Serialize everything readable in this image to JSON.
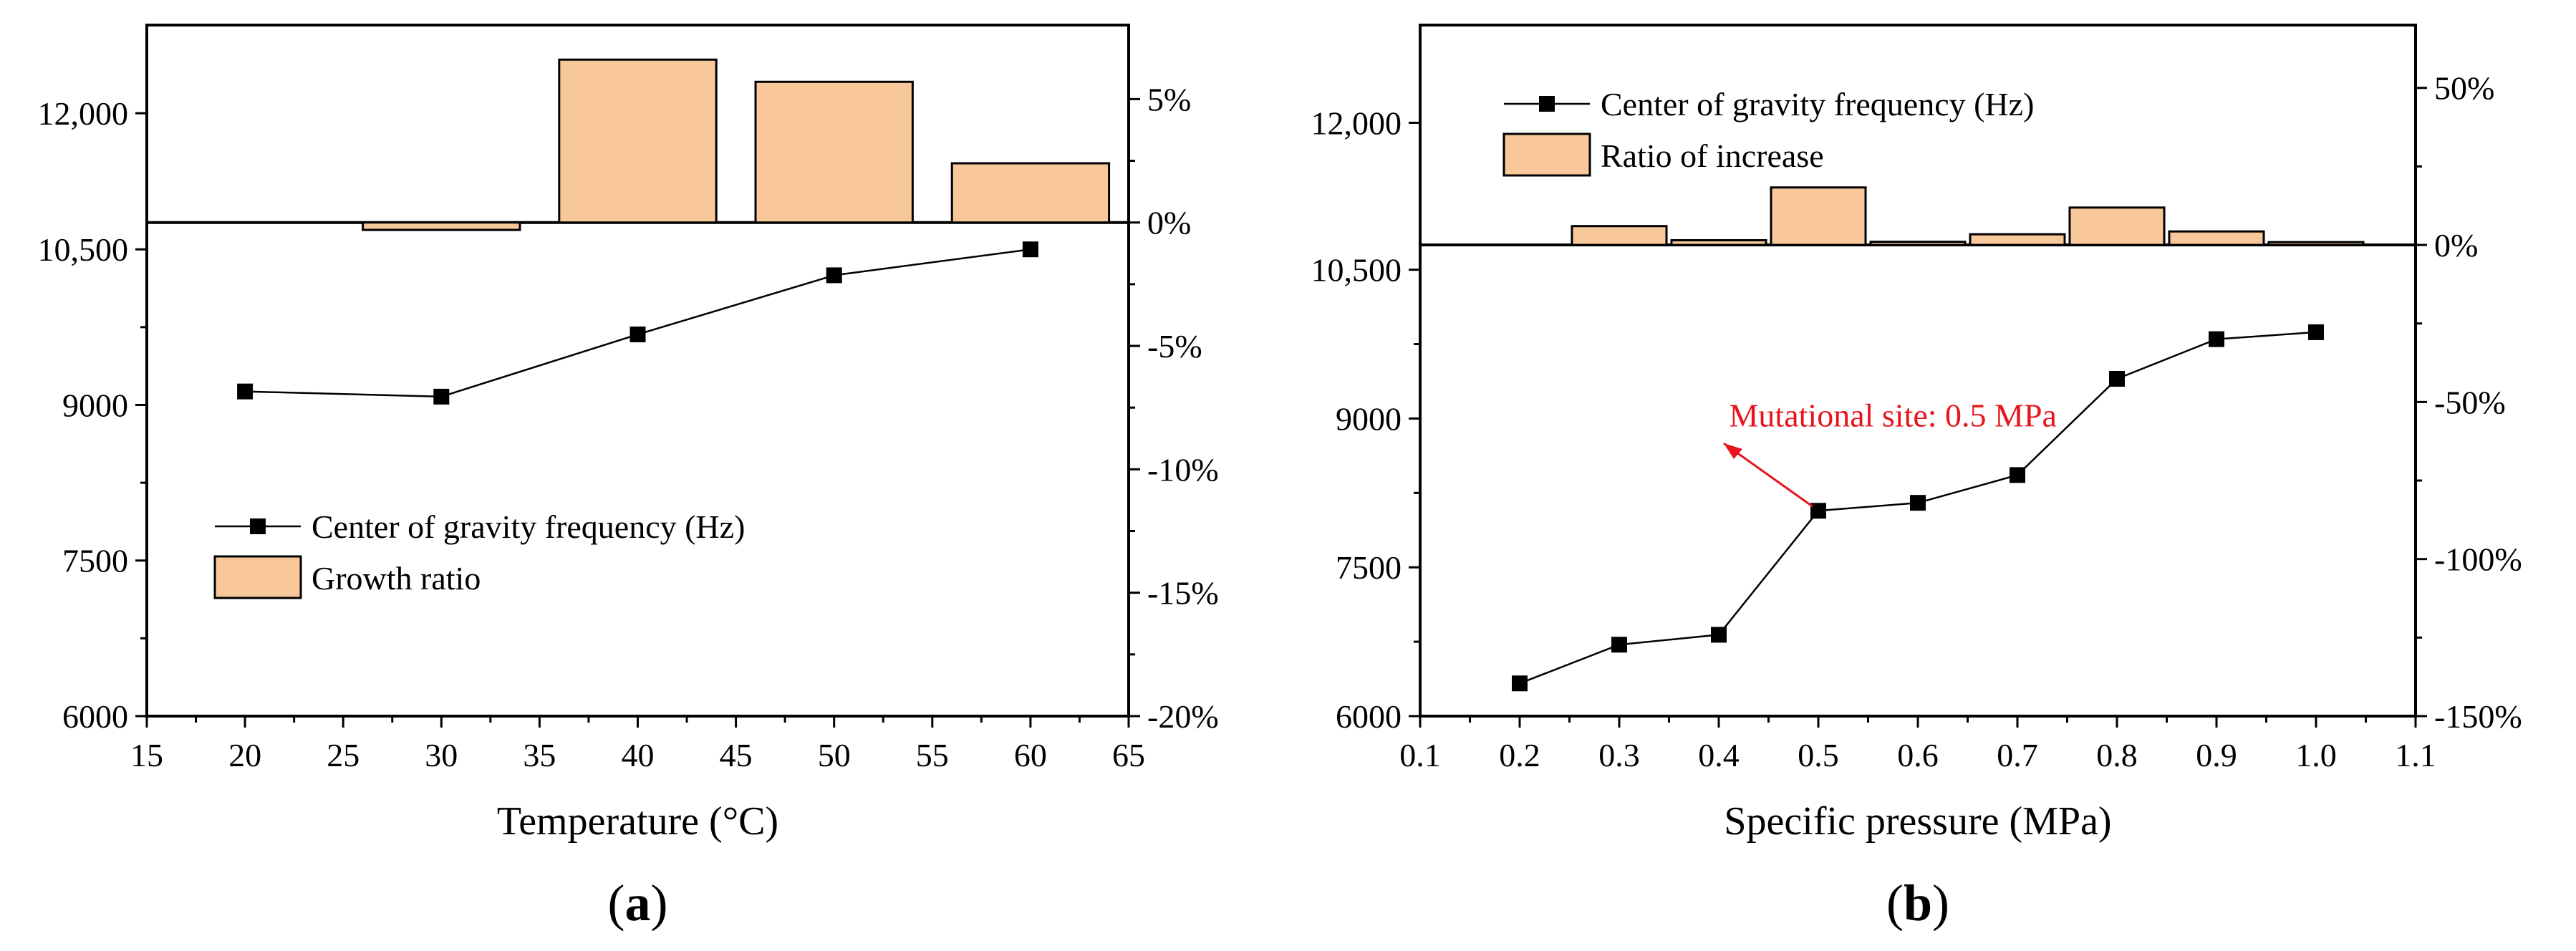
{
  "chart_data": [
    {
      "type": "bar+line",
      "panel_label": "(a)",
      "panel_paren_open": "(",
      "panel_letter": "a",
      "panel_paren_close": ")",
      "xlabel": "Temperature (°C)",
      "xlim": [
        15,
        65
      ],
      "xticks": [
        15,
        20,
        25,
        30,
        35,
        40,
        45,
        50,
        55,
        60,
        65
      ],
      "xtick_labels": [
        "15",
        "20",
        "25",
        "30",
        "35",
        "40",
        "45",
        "50",
        "55",
        "60",
        "65"
      ],
      "left_ylim": [
        6000,
        13000
      ],
      "left_yticks": [
        6000,
        7500,
        9000,
        10500,
        12000
      ],
      "left_ytick_labels": [
        "6000",
        "7500",
        "9000",
        "10,500",
        "12,000"
      ],
      "right_ylim": [
        -20,
        8
      ],
      "right_yticks": [
        -20,
        -15,
        -10,
        -5,
        0,
        5
      ],
      "right_ytick_labels": [
        "-20%",
        "-15%",
        "-10%",
        "-5%",
        "0%",
        "5%"
      ],
      "series": [
        {
          "name": "Center of gravity frequency (Hz)",
          "kind": "line",
          "axis": "left",
          "x": [
            20,
            30,
            40,
            50,
            60
          ],
          "values": [
            9130,
            9080,
            9680,
            10250,
            10500
          ]
        },
        {
          "name": "Growth ratio",
          "kind": "bar",
          "axis": "right",
          "x": [
            30,
            40,
            50,
            60
          ],
          "values": [
            -0.3,
            6.6,
            5.7,
            2.4
          ],
          "color": "#f8c89a"
        }
      ],
      "legend": [
        "Center of gravity frequency (Hz)",
        "Growth ratio"
      ],
      "legend_position": "middle-left"
    },
    {
      "type": "bar+line",
      "panel_label": "(b)",
      "panel_paren_open": "(",
      "panel_letter": "b",
      "panel_paren_close": ")",
      "xlabel": "Specific pressure (MPa)",
      "xlim": [
        0.1,
        1.1
      ],
      "xticks": [
        0.1,
        0.2,
        0.3,
        0.4,
        0.5,
        0.6,
        0.7,
        0.8,
        0.9,
        1.0,
        1.1
      ],
      "xtick_labels": [
        "0.1",
        "0.2",
        "0.3",
        "0.4",
        "0.5",
        "0.6",
        "0.7",
        "0.8",
        "0.9",
        "1.0",
        "1.1"
      ],
      "left_ylim": [
        6000,
        13000
      ],
      "left_yticks": [
        6000,
        7500,
        9000,
        10500,
        12000
      ],
      "left_ytick_labels": [
        "6000",
        "7500",
        "9000",
        "10,500",
        "12,000"
      ],
      "right_ylim": [
        -150,
        70
      ],
      "right_yticks": [
        -150,
        -100,
        -50,
        0,
        50
      ],
      "right_ytick_labels": [
        "-150%",
        "-100%",
        "-50%",
        "0%",
        "50%"
      ],
      "series": [
        {
          "name": "Center of gravity frequency (Hz)",
          "kind": "line",
          "axis": "left",
          "x": [
            0.2,
            0.3,
            0.4,
            0.5,
            0.6,
            0.7,
            0.8,
            0.9,
            1.0
          ],
          "values": [
            6330,
            6720,
            6820,
            8070,
            8150,
            8430,
            9400,
            9800,
            9870
          ]
        },
        {
          "name": "Ratio of increase",
          "kind": "bar",
          "axis": "right",
          "x": [
            0.3,
            0.4,
            0.5,
            0.6,
            0.7,
            0.8,
            0.9,
            1.0
          ],
          "values": [
            6.0,
            1.5,
            18.3,
            1.0,
            3.4,
            11.9,
            4.3,
            0.9
          ],
          "color": "#f8c89a"
        }
      ],
      "legend": [
        "Center of gravity frequency (Hz)",
        "Ratio of increase"
      ],
      "legend_position": "top-left",
      "annotation": {
        "text": "Mutational site: 0.5 MPa",
        "x": 0.5,
        "y": 8070,
        "color": "#e8141c"
      }
    }
  ]
}
